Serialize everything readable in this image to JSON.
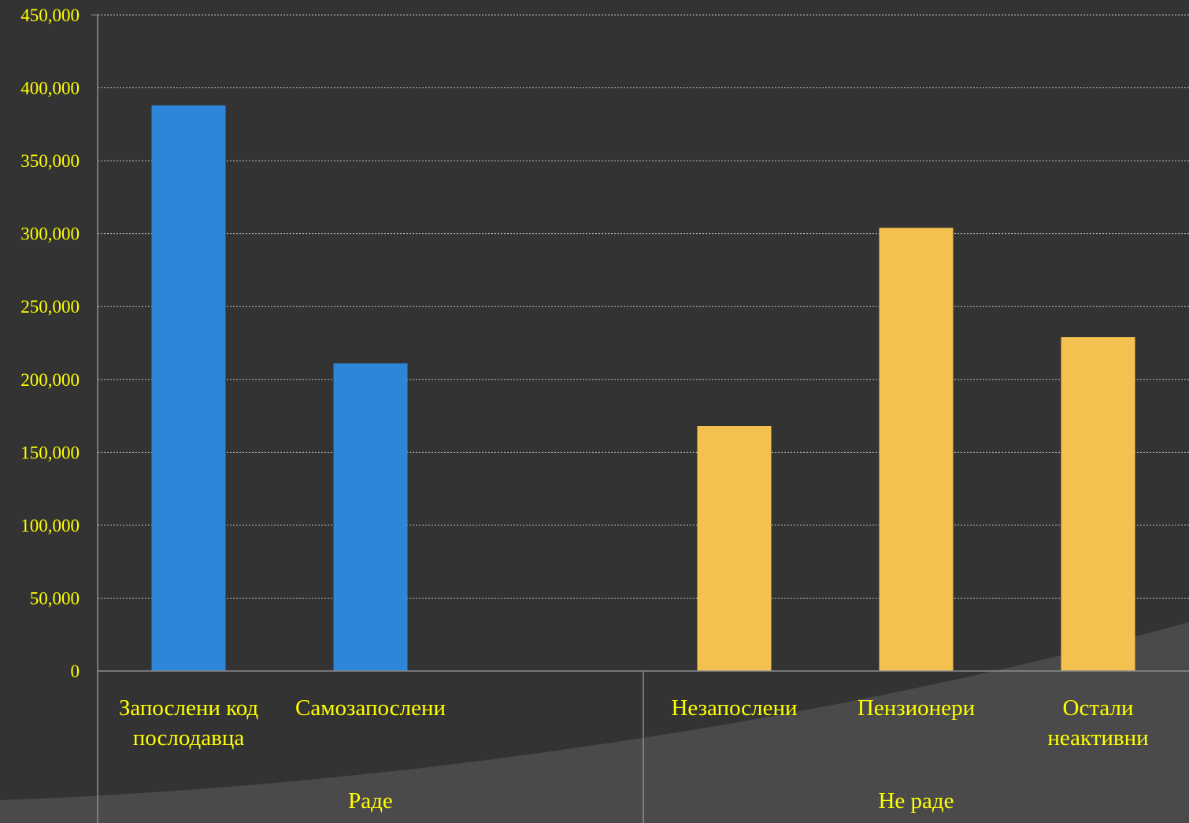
{
  "theme": {
    "background": "#333333",
    "swoosh": "#4A4A4A",
    "gridline": "#BFBFBF",
    "axis_line": "#8C8C8C",
    "text": "#FFFF00"
  },
  "chart_data": {
    "type": "bar",
    "y_ticks": [
      "0",
      "50,000",
      "100,000",
      "150,000",
      "200,000",
      "250,000",
      "300,000",
      "350,000",
      "400,000",
      "450,000"
    ],
    "ylim": [
      0,
      450000
    ],
    "grid": true,
    "categories": [
      {
        "label_lines": [
          "Запослени код",
          "послодавца"
        ],
        "group": 0,
        "value": 388000
      },
      {
        "label_lines": [
          "Самозапослени"
        ],
        "group": 0,
        "value": 211000
      },
      {
        "label_lines": [],
        "group": 0,
        "value": null
      },
      {
        "label_lines": [
          "Незапослени"
        ],
        "group": 1,
        "value": 168000
      },
      {
        "label_lines": [
          "Пензионери"
        ],
        "group": 1,
        "value": 304000
      },
      {
        "label_lines": [
          "Остали",
          "неактивни"
        ],
        "group": 1,
        "value": 229000
      }
    ],
    "groups": [
      {
        "label": "Раде",
        "color": "#2E86DA"
      },
      {
        "label": "Не раде",
        "color": "#F4C050"
      }
    ]
  }
}
